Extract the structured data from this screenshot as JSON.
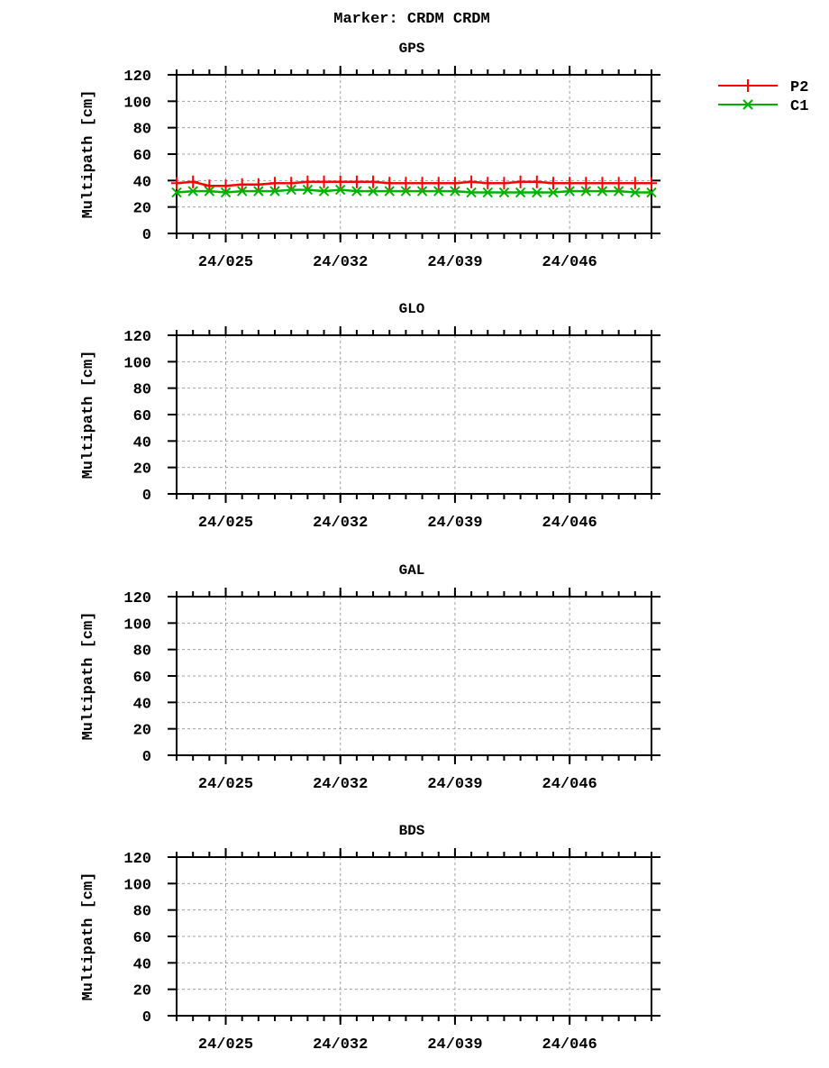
{
  "chart_data": {
    "type": "line",
    "title": "Marker: CRDM CRDM",
    "legend": {
      "position": "top-right",
      "entries": [
        {
          "label": "P2",
          "color": "#ff0000",
          "marker": "plus"
        },
        {
          "label": "C1",
          "color": "#00b000",
          "marker": "x"
        }
      ]
    },
    "x_axis": {
      "range_doy": [
        22,
        51
      ],
      "major_ticks_doy": [
        25,
        32,
        39,
        46
      ],
      "tick_labels": [
        "24/025",
        "24/032",
        "24/039",
        "24/046"
      ],
      "minor_tick_step_days": 1
    },
    "y_axis": {
      "label": "Multipath [cm]",
      "range": [
        0,
        120
      ],
      "ticks": [
        0,
        20,
        40,
        60,
        80,
        100,
        120
      ]
    },
    "grid": true,
    "panels": [
      {
        "title": "GPS",
        "x": [
          22,
          23,
          24,
          25,
          26,
          27,
          28,
          29,
          30,
          31,
          32,
          33,
          34,
          35,
          36,
          37,
          38,
          39,
          40,
          41,
          42,
          43,
          44,
          45,
          46,
          47,
          48,
          49,
          50,
          51
        ],
        "series": [
          {
            "name": "P2",
            "values": [
              38,
              39,
              36,
              36,
              37,
              37,
              38,
              38,
              39,
              39,
              39,
              39,
              39,
              38,
              38,
              38,
              38,
              38,
              39,
              38,
              38,
              39,
              39,
              38,
              38,
              38,
              38,
              38,
              38,
              38
            ]
          },
          {
            "name": "C1",
            "values": [
              31,
              32,
              32,
              31,
              32,
              32,
              32,
              33,
              33,
              32,
              33,
              32,
              32,
              32,
              32,
              32,
              32,
              32,
              31,
              31,
              31,
              31,
              31,
              31,
              32,
              32,
              32,
              32,
              31,
              31
            ]
          }
        ]
      },
      {
        "title": "GLO",
        "x": [],
        "series": []
      },
      {
        "title": "GAL",
        "x": [],
        "series": []
      },
      {
        "title": "BDS",
        "x": [],
        "series": []
      }
    ]
  }
}
